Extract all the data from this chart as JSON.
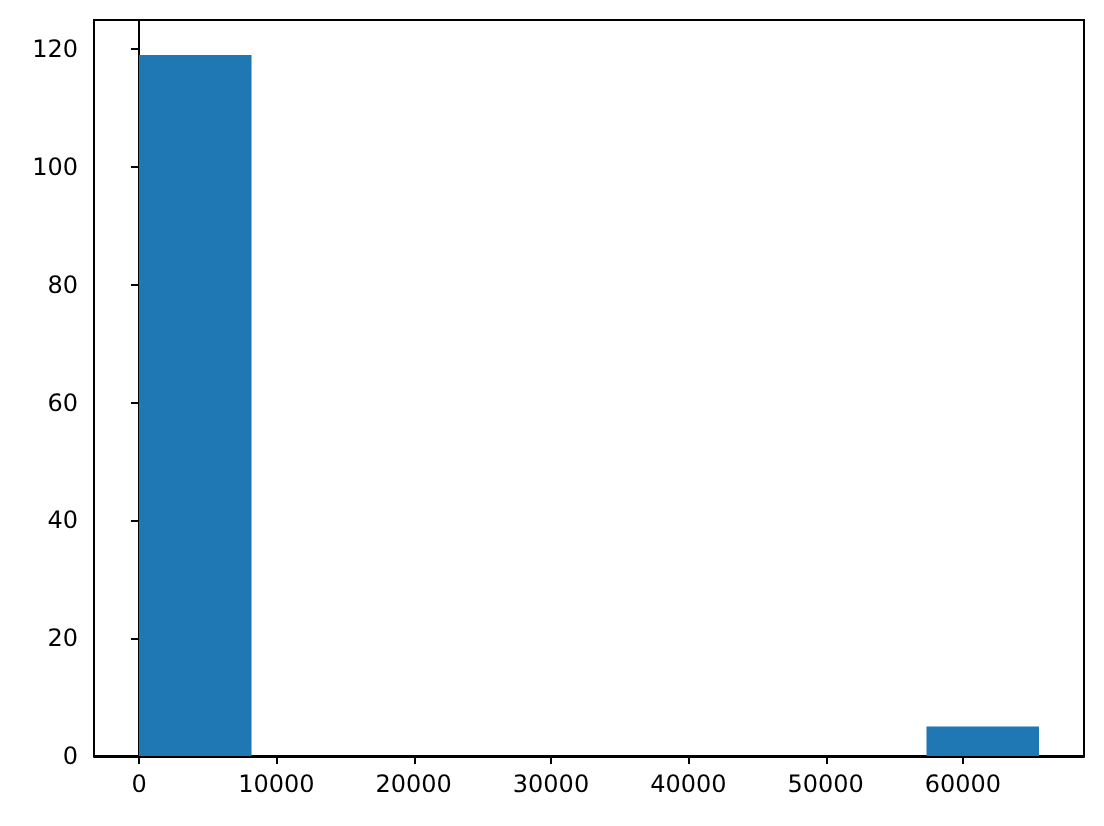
{
  "chart_data": {
    "type": "histogram",
    "bins": [
      0,
      8192,
      16384,
      24576,
      32768,
      40960,
      49152,
      57344,
      65536
    ],
    "values": [
      119,
      0,
      0,
      0,
      0,
      0,
      0,
      5
    ],
    "color": "#1f77b4",
    "xlim": [
      -3277,
      68813
    ],
    "xticks": [
      0,
      10000,
      20000,
      30000,
      40000,
      50000,
      60000
    ],
    "ylim": [
      0,
      124.95
    ],
    "yticks": [
      0,
      20,
      40,
      60,
      80,
      100,
      120
    ]
  }
}
